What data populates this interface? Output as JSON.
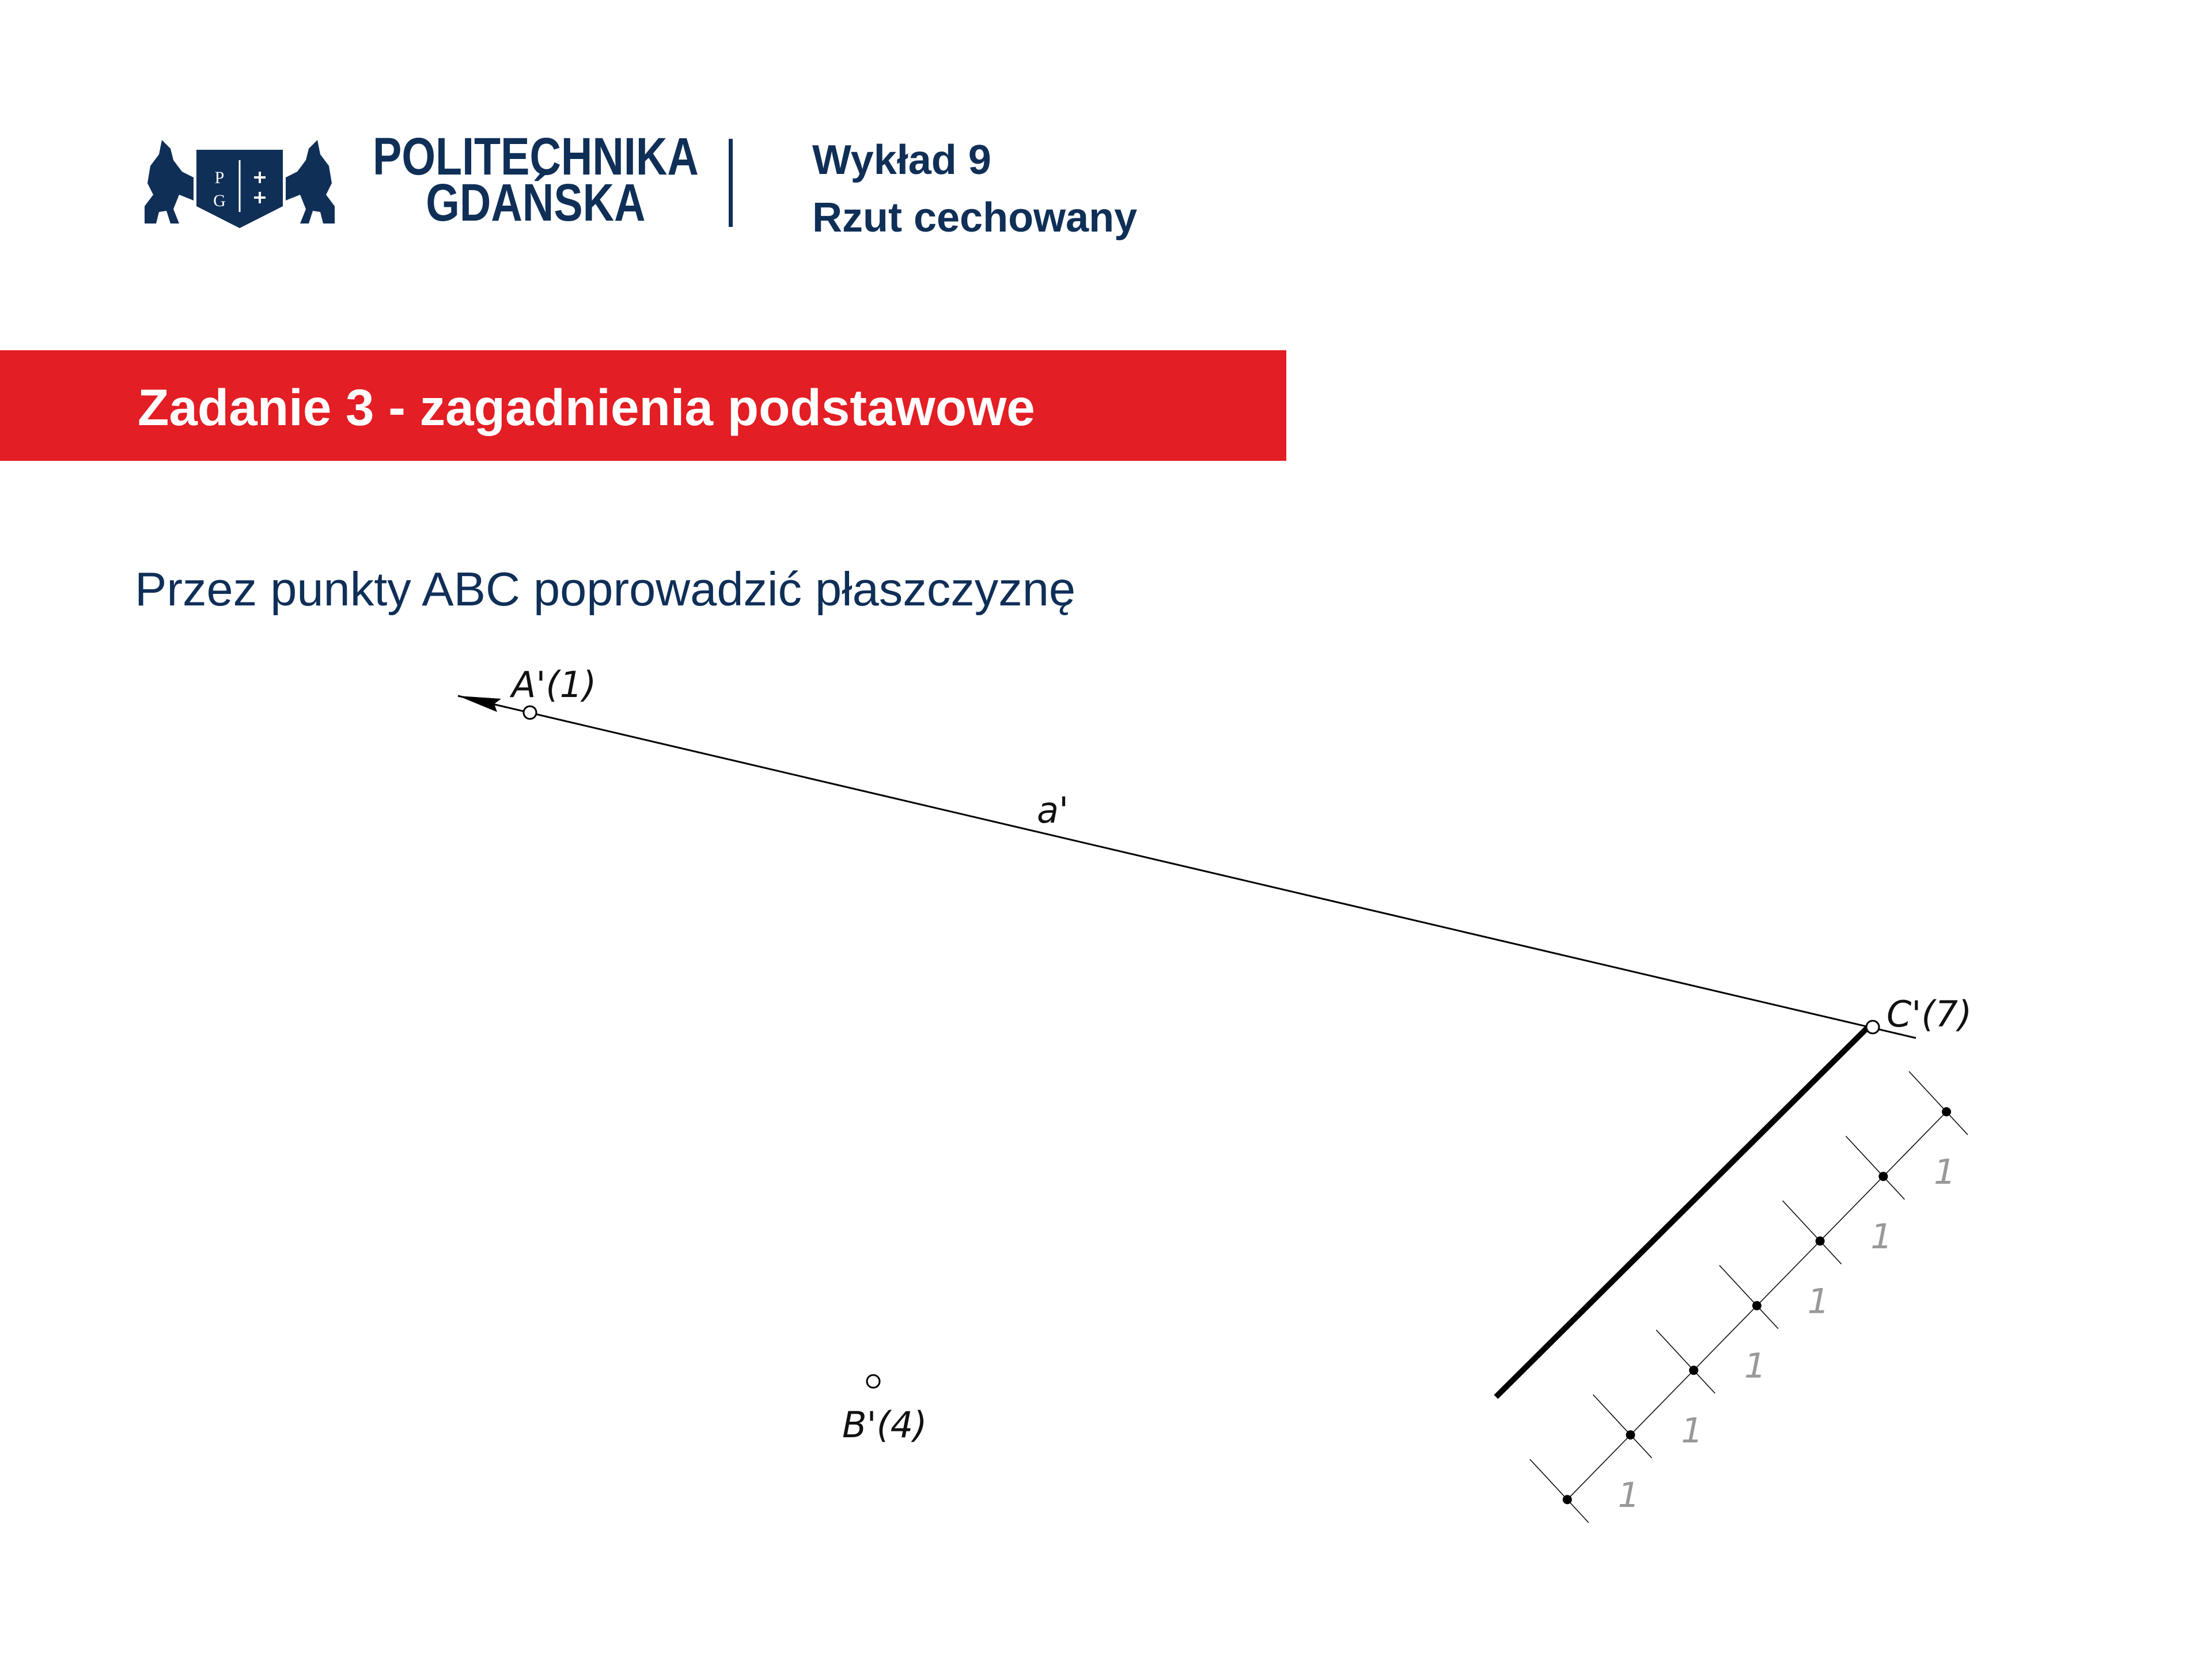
{
  "header": {
    "university_line1": "POLITECHNIKA",
    "university_line2": "GDAŃSKA",
    "logo_letters": [
      "P",
      "G"
    ],
    "lecture": "Wykład 9",
    "topic": "Rzut cechowany"
  },
  "banner": {
    "title": "Zadanie 3 - zagadnienia podstawowe",
    "color": "#e31e24"
  },
  "task_text": "Przez punkty ABC poprowadzić płaszczyznę",
  "drawing": {
    "point_a": "A'(1)",
    "point_b": "B'(4)",
    "point_c": "C'(7)",
    "line_a": "a'",
    "scale_labels": [
      "1",
      "1",
      "1",
      "1",
      "1",
      "1"
    ]
  },
  "colors": {
    "navy": "#0f2f57",
    "scale_label": "#999999"
  }
}
